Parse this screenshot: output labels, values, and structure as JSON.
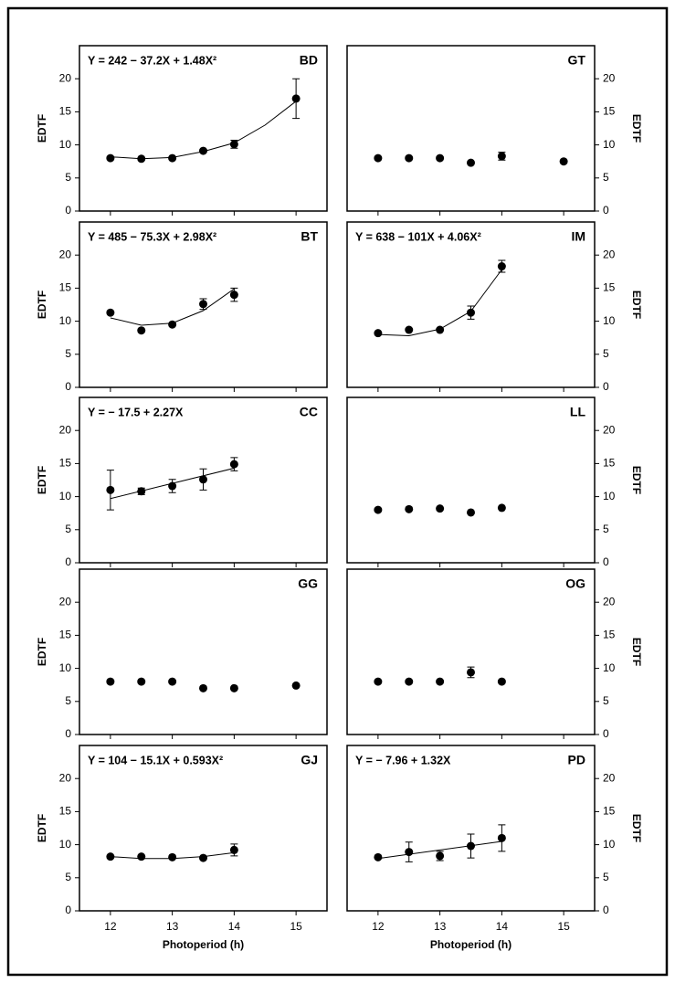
{
  "chart_data": [
    {
      "type": "scatter",
      "title": "BD",
      "equation": "Y = 242 − 37.2X + 1.48X²",
      "ylabel": "EDTF",
      "y_axis_side": "left",
      "xtick_labels": false,
      "x": [
        12,
        12.5,
        13,
        13.5,
        14,
        15
      ],
      "values": [
        8,
        7.9,
        8,
        9.1,
        10.1,
        17
      ],
      "errors": [
        null,
        null,
        null,
        null,
        0.6,
        3
      ],
      "fit": {
        "x": [
          12,
          12.5,
          13,
          13.5,
          14,
          14.5,
          15
        ],
        "values": [
          8.2,
          7.9,
          8.1,
          9.0,
          10.3,
          13,
          16.6
        ]
      },
      "xlim": [
        11.5,
        15.5
      ],
      "xticks": [
        12,
        13,
        14,
        15
      ],
      "ylim": [
        0,
        25
      ],
      "yticks": [
        0,
        5,
        10,
        15,
        20
      ],
      "color": "#000000"
    },
    {
      "type": "scatter",
      "title": "GT",
      "ylabel": "EDTF",
      "y_axis_side": "right",
      "xtick_labels": false,
      "x": [
        12,
        12.5,
        13,
        13.5,
        14,
        15
      ],
      "values": [
        8,
        8,
        8,
        7.3,
        8.3,
        7.5
      ],
      "errors": [
        null,
        null,
        null,
        null,
        0.6,
        null
      ],
      "xlim": [
        11.5,
        15.5
      ],
      "xticks": [
        12,
        13,
        14,
        15
      ],
      "ylim": [
        0,
        25
      ],
      "yticks": [
        0,
        5,
        10,
        15,
        20
      ],
      "color": "#000000"
    },
    {
      "type": "scatter",
      "title": "BT",
      "equation": "Y = 485 − 75.3X + 2.98X²",
      "ylabel": "EDTF",
      "y_axis_side": "left",
      "xtick_labels": false,
      "x": [
        12,
        12.5,
        13,
        13.5,
        14
      ],
      "values": [
        11.3,
        8.6,
        9.5,
        12.6,
        14
      ],
      "errors": [
        null,
        null,
        null,
        0.8,
        1
      ],
      "fit": {
        "x": [
          12,
          12.5,
          13,
          13.5,
          14
        ],
        "values": [
          10.5,
          9.4,
          9.7,
          11.6,
          14.9
        ]
      },
      "xlim": [
        11.5,
        15.5
      ],
      "xticks": [
        12,
        13,
        14,
        15
      ],
      "ylim": [
        0,
        25
      ],
      "yticks": [
        0,
        5,
        10,
        15,
        20
      ],
      "color": "#000000"
    },
    {
      "type": "scatter",
      "title": "IM",
      "equation": "Y = 638 − 101X + 4.06X²",
      "ylabel": "EDTF",
      "y_axis_side": "right",
      "xtick_labels": false,
      "x": [
        12,
        12.5,
        13,
        13.5,
        14
      ],
      "values": [
        8.2,
        8.7,
        8.7,
        11.3,
        18.3
      ],
      "errors": [
        null,
        null,
        null,
        1,
        0.9
      ],
      "fit": {
        "x": [
          12,
          12.5,
          13,
          13.5,
          14
        ],
        "values": [
          8.0,
          7.8,
          8.8,
          11.5,
          17.8
        ]
      },
      "xlim": [
        11.5,
        15.5
      ],
      "xticks": [
        12,
        13,
        14,
        15
      ],
      "ylim": [
        0,
        25
      ],
      "yticks": [
        0,
        5,
        10,
        15,
        20
      ],
      "color": "#000000"
    },
    {
      "type": "scatter",
      "title": "CC",
      "equation": "Y = − 17.5 + 2.27X",
      "ylabel": "EDTF",
      "y_axis_side": "left",
      "xtick_labels": false,
      "x": [
        12,
        12.5,
        13,
        13.5,
        14
      ],
      "values": [
        11,
        10.8,
        11.6,
        12.6,
        14.9
      ],
      "errors": [
        3,
        0.5,
        1,
        1.6,
        1
      ],
      "fit": {
        "x": [
          12,
          14
        ],
        "values": [
          9.7,
          14.3
        ]
      },
      "xlim": [
        11.5,
        15.5
      ],
      "xticks": [
        12,
        13,
        14,
        15
      ],
      "ylim": [
        0,
        25
      ],
      "yticks": [
        0,
        5,
        10,
        15,
        20
      ],
      "color": "#000000"
    },
    {
      "type": "scatter",
      "title": "LL",
      "ylabel": "EDTF",
      "y_axis_side": "right",
      "xtick_labels": false,
      "x": [
        12,
        12.5,
        13,
        13.5,
        14
      ],
      "values": [
        8,
        8.1,
        8.2,
        7.6,
        8.3
      ],
      "xlim": [
        11.5,
        15.5
      ],
      "xticks": [
        12,
        13,
        14,
        15
      ],
      "ylim": [
        0,
        25
      ],
      "yticks": [
        0,
        5,
        10,
        15,
        20
      ],
      "color": "#000000"
    },
    {
      "type": "scatter",
      "title": "GG",
      "ylabel": "EDTF",
      "y_axis_side": "left",
      "xtick_labels": false,
      "x": [
        12,
        12.5,
        13,
        13.5,
        14,
        15
      ],
      "values": [
        8,
        8,
        8,
        7,
        7,
        7.4
      ],
      "xlim": [
        11.5,
        15.5
      ],
      "xticks": [
        12,
        13,
        14,
        15
      ],
      "ylim": [
        0,
        25
      ],
      "yticks": [
        0,
        5,
        10,
        15,
        20
      ],
      "color": "#000000"
    },
    {
      "type": "scatter",
      "title": "OG",
      "ylabel": "EDTF",
      "y_axis_side": "right",
      "xtick_labels": false,
      "x": [
        12,
        12.5,
        13,
        13.5,
        14
      ],
      "values": [
        8,
        8,
        8,
        9.4,
        8
      ],
      "errors": [
        null,
        null,
        null,
        0.8,
        null
      ],
      "xlim": [
        11.5,
        15.5
      ],
      "xticks": [
        12,
        13,
        14,
        15
      ],
      "ylim": [
        0,
        25
      ],
      "yticks": [
        0,
        5,
        10,
        15,
        20
      ],
      "color": "#000000"
    },
    {
      "type": "scatter",
      "title": "GJ",
      "equation": "Y = 104 − 15.1X + 0.593X²",
      "ylabel": "EDTF",
      "xlabel": "Photoperiod (h)",
      "y_axis_side": "left",
      "xtick_labels": true,
      "x": [
        12,
        12.5,
        13,
        13.5,
        14
      ],
      "values": [
        8.2,
        8.2,
        8.1,
        8,
        9.2
      ],
      "errors": [
        null,
        null,
        null,
        null,
        0.9
      ],
      "fit": {
        "x": [
          12,
          12.5,
          13,
          13.5,
          14
        ],
        "values": [
          8.2,
          7.9,
          7.9,
          8.2,
          8.8
        ]
      },
      "xlim": [
        11.5,
        15.5
      ],
      "xticks": [
        12,
        13,
        14,
        15
      ],
      "ylim": [
        0,
        25
      ],
      "yticks": [
        0,
        5,
        10,
        15,
        20
      ],
      "color": "#000000"
    },
    {
      "type": "scatter",
      "title": "PD",
      "equation": "Y = − 7.96 + 1.32X",
      "ylabel": "EDTF",
      "xlabel": "Photoperiod (h)",
      "y_axis_side": "right",
      "xtick_labels": true,
      "x": [
        12,
        12.5,
        13,
        13.5,
        14
      ],
      "values": [
        8.1,
        8.9,
        8.3,
        9.8,
        11
      ],
      "errors": [
        null,
        1.5,
        0.7,
        1.8,
        2
      ],
      "fit": {
        "x": [
          12,
          14
        ],
        "values": [
          7.9,
          10.5
        ]
      },
      "xlim": [
        11.5,
        15.5
      ],
      "xticks": [
        12,
        13,
        14,
        15
      ],
      "ylim": [
        0,
        25
      ],
      "yticks": [
        0,
        5,
        10,
        15,
        20
      ],
      "color": "#000000"
    }
  ]
}
